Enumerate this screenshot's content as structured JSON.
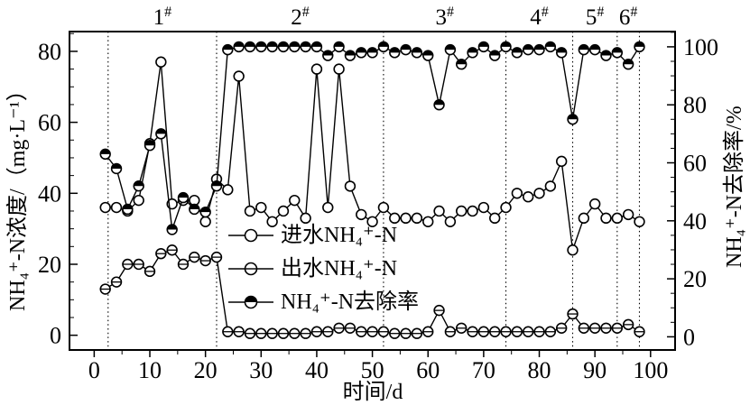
{
  "chart_data": {
    "type": "line",
    "x_label": "时间/d",
    "y_left_label": "NH₄⁺-N浓度/（mg·L⁻¹）",
    "y_right_label": "NH₄⁺-N去除率/%",
    "colors": {
      "foreground": "#000000",
      "background": "#ffffff"
    },
    "axes": {
      "x": {
        "min": -4.44,
        "max": 104.41,
        "ticks": [
          0,
          10,
          20,
          30,
          40,
          50,
          60,
          70,
          80,
          90,
          100
        ],
        "minor_step": 5
      },
      "left": {
        "min": -4.15,
        "max": 85.57,
        "ticks": [
          0,
          20,
          40,
          60,
          80
        ],
        "minor_step": 5
      },
      "right": {
        "min": -4.54,
        "max": 105.26,
        "ticks": [
          0,
          20,
          40,
          60,
          80,
          100
        ],
        "minor_step": 5
      }
    },
    "boundaries": [
      2.5,
      22,
      52,
      74,
      86,
      94,
      98
    ],
    "phases": [
      {
        "label": "1",
        "sup": "#",
        "from": 2.5,
        "to": 22
      },
      {
        "label": "2",
        "sup": "#",
        "from": 22,
        "to": 52
      },
      {
        "label": "3",
        "sup": "#",
        "from": 52,
        "to": 74
      },
      {
        "label": "4",
        "sup": "#",
        "from": 74,
        "to": 86
      },
      {
        "label": "5",
        "sup": "#",
        "from": 86,
        "to": 94
      },
      {
        "label": "6",
        "sup": "#",
        "from": 94,
        "to": 98
      }
    ],
    "legend": [
      {
        "label": "进水NH₄⁺-N",
        "marker": "open"
      },
      {
        "label": "出水NH₄⁺-N",
        "marker": "hline"
      },
      {
        "label": "NH₄⁺-N去除率",
        "marker": "tophalf"
      }
    ],
    "x": [
      2,
      4,
      6,
      8,
      10,
      12,
      14,
      16,
      18,
      20,
      22,
      24,
      26,
      28,
      30,
      32,
      34,
      36,
      38,
      40,
      42,
      44,
      46,
      48,
      50,
      52,
      54,
      56,
      58,
      60,
      62,
      64,
      66,
      68,
      70,
      72,
      74,
      76,
      78,
      80,
      82,
      84,
      86,
      88,
      90,
      92,
      94,
      96,
      98
    ],
    "series": [
      {
        "name": "进水NH₄⁺-N",
        "axis": "left",
        "marker": "open",
        "values": [
          36,
          36,
          35,
          38,
          54,
          77,
          37,
          38,
          38,
          32,
          44,
          41,
          73,
          35,
          36,
          32,
          35,
          38,
          33,
          75,
          36,
          75,
          42,
          34,
          32,
          36,
          33,
          33,
          33,
          32,
          35,
          32,
          35,
          35,
          36,
          33,
          36,
          40,
          39,
          40,
          42,
          49,
          24,
          33,
          37,
          33,
          33,
          34,
          32
        ]
      },
      {
        "name": "出水NH₄⁺-N",
        "axis": "left",
        "marker": "hline",
        "values": [
          13,
          15,
          20,
          20,
          18,
          23,
          24,
          20,
          22,
          21,
          22,
          1,
          1,
          0.5,
          0.5,
          0.5,
          0.5,
          0.5,
          0.5,
          1,
          1,
          2,
          2,
          1,
          1,
          1,
          0.5,
          0.5,
          0.5,
          1,
          7,
          1,
          2,
          1,
          1,
          1,
          1,
          1,
          1,
          1,
          1,
          2,
          6,
          2,
          2,
          2,
          2,
          3,
          1
        ]
      },
      {
        "name": "NH₄⁺-N去除率",
        "axis": "right",
        "marker": "tophalf",
        "values": [
          63,
          58,
          44,
          52,
          66,
          70,
          37,
          48,
          44,
          43,
          52,
          99,
          100,
          100,
          100,
          100,
          100,
          100,
          100,
          100,
          97,
          100,
          97,
          98,
          98,
          100,
          98,
          99,
          98,
          97,
          80,
          99,
          94,
          98,
          100,
          97,
          100,
          98,
          99,
          99,
          100,
          98,
          75,
          99,
          99,
          97,
          98,
          94,
          100
        ]
      }
    ]
  }
}
